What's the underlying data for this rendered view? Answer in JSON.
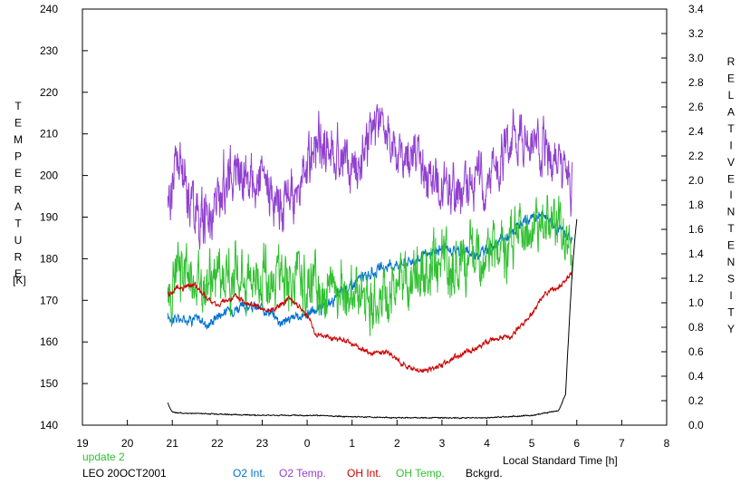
{
  "chart_data": {
    "type": "line",
    "x_axis": {
      "label": "Local Standard Time [h]",
      "range": [
        19,
        32
      ],
      "ticks": [
        19,
        20,
        21,
        22,
        23,
        24,
        25,
        26,
        27,
        28,
        29,
        30,
        31,
        32
      ],
      "tick_labels": [
        "19",
        "20",
        "21",
        "22",
        "23",
        "0",
        "1",
        "2",
        "3",
        "4",
        "5",
        "6",
        "7",
        "8"
      ]
    },
    "y_left": {
      "label_letters": [
        "T",
        "E",
        "M",
        "P",
        "E",
        "R",
        "A",
        "T",
        "U",
        "R",
        "E"
      ],
      "unit": "[K]",
      "range": [
        140,
        240
      ],
      "ticks": [
        140,
        150,
        160,
        170,
        180,
        190,
        200,
        210,
        220,
        230,
        240
      ]
    },
    "y_right": {
      "label_word1": [
        "R",
        "E",
        "L",
        "A",
        "T",
        "I",
        "V",
        "E"
      ],
      "label_word2": [
        "I",
        "N",
        "T",
        "E",
        "N",
        "S",
        "I",
        "T",
        "Y"
      ],
      "range": [
        0.0,
        3.4
      ],
      "ticks": [
        "0.0",
        "0.2",
        "0.4",
        "0.6",
        "0.8",
        "1.0",
        "1.2",
        "1.4",
        "1.6",
        "1.8",
        "2.0",
        "2.2",
        "2.4",
        "2.6",
        "2.8",
        "3.0",
        "3.2",
        "3.4"
      ]
    },
    "grid": false,
    "annotations": {
      "update": "update 2",
      "station": "LEO 20OCT2001"
    },
    "series": [
      {
        "name": "O2 Int.",
        "axis": "right",
        "color": "#0070d0",
        "noise": 0.03,
        "x": [
          20.9,
          21.2,
          21.5,
          21.8,
          22.0,
          22.4,
          22.8,
          23.1,
          23.4,
          23.8,
          24.0,
          24.4,
          24.8,
          25.2,
          25.6,
          26.0,
          26.4,
          26.8,
          27.0,
          27.4,
          27.8,
          28.2,
          28.6,
          29.0,
          29.3,
          29.6,
          29.9
        ],
        "y": [
          0.88,
          0.86,
          0.88,
          0.82,
          0.9,
          0.96,
          0.96,
          0.95,
          0.85,
          0.88,
          0.92,
          0.96,
          1.1,
          1.2,
          1.27,
          1.32,
          1.35,
          1.4,
          1.45,
          1.42,
          1.4,
          1.48,
          1.58,
          1.7,
          1.72,
          1.6,
          1.52
        ]
      },
      {
        "name": "O2 Temp.",
        "axis": "left",
        "color": "#9040d0",
        "noise": 4.5,
        "x": [
          20.9,
          21.1,
          21.4,
          21.6,
          21.9,
          22.2,
          22.6,
          23.0,
          23.4,
          23.8,
          24.2,
          24.6,
          25.0,
          25.3,
          25.6,
          26.0,
          26.4,
          26.8,
          27.2,
          27.6,
          28.0,
          28.4,
          28.8,
          29.2,
          29.5,
          29.8,
          29.9
        ],
        "y": [
          192,
          204,
          195,
          190,
          191,
          200,
          202,
          198,
          193,
          195,
          208,
          206,
          202,
          207,
          212,
          206,
          204,
          198,
          195,
          198,
          200,
          205,
          211,
          207,
          204,
          200,
          198
        ]
      },
      {
        "name": "OH Int.",
        "axis": "right",
        "color": "#cc0000",
        "noise": 0.015,
        "x": [
          20.9,
          21.1,
          21.3,
          21.5,
          21.8,
          22.0,
          22.4,
          22.8,
          23.1,
          23.4,
          23.6,
          24.0,
          24.2,
          24.6,
          24.9,
          25.2,
          25.5,
          25.8,
          26.2,
          26.5,
          26.9,
          27.3,
          27.7,
          28.1,
          28.5,
          28.9,
          29.3,
          29.6,
          29.9
        ],
        "y": [
          1.06,
          1.12,
          1.13,
          1.15,
          1.02,
          0.98,
          1.05,
          0.98,
          0.92,
          0.98,
          1.05,
          0.9,
          0.74,
          0.71,
          0.68,
          0.62,
          0.58,
          0.6,
          0.48,
          0.44,
          0.47,
          0.56,
          0.62,
          0.7,
          0.72,
          0.86,
          1.08,
          1.12,
          1.25
        ]
      },
      {
        "name": "OH Temp.",
        "axis": "left",
        "color": "#30c030",
        "noise": 5.0,
        "x": [
          20.9,
          21.2,
          21.5,
          21.8,
          22.2,
          22.6,
          23.0,
          23.4,
          23.8,
          24.2,
          24.6,
          25.0,
          25.4,
          25.8,
          26.2,
          26.6,
          27.0,
          27.4,
          27.8,
          28.2,
          28.6,
          29.0,
          29.3,
          29.6,
          29.9
        ],
        "y": [
          170,
          178,
          175,
          174,
          176,
          176,
          176,
          177,
          173,
          174,
          172,
          172,
          171,
          170,
          176,
          175,
          178,
          178,
          180,
          182,
          185,
          187,
          190,
          186,
          182
        ]
      },
      {
        "name": "Bckgrd.",
        "axis": "right",
        "color": "#000000",
        "noise": 0.003,
        "x": [
          20.9,
          20.95,
          21.0,
          21.1,
          22.0,
          23.0,
          24.0,
          25.0,
          26.0,
          27.0,
          28.0,
          29.0,
          29.6,
          29.75,
          29.82,
          29.88,
          29.94,
          30.0
        ],
        "y": [
          0.18,
          0.14,
          0.11,
          0.1,
          0.09,
          0.08,
          0.08,
          0.07,
          0.06,
          0.06,
          0.06,
          0.08,
          0.12,
          0.25,
          0.75,
          1.15,
          1.45,
          1.68
        ]
      }
    ]
  }
}
